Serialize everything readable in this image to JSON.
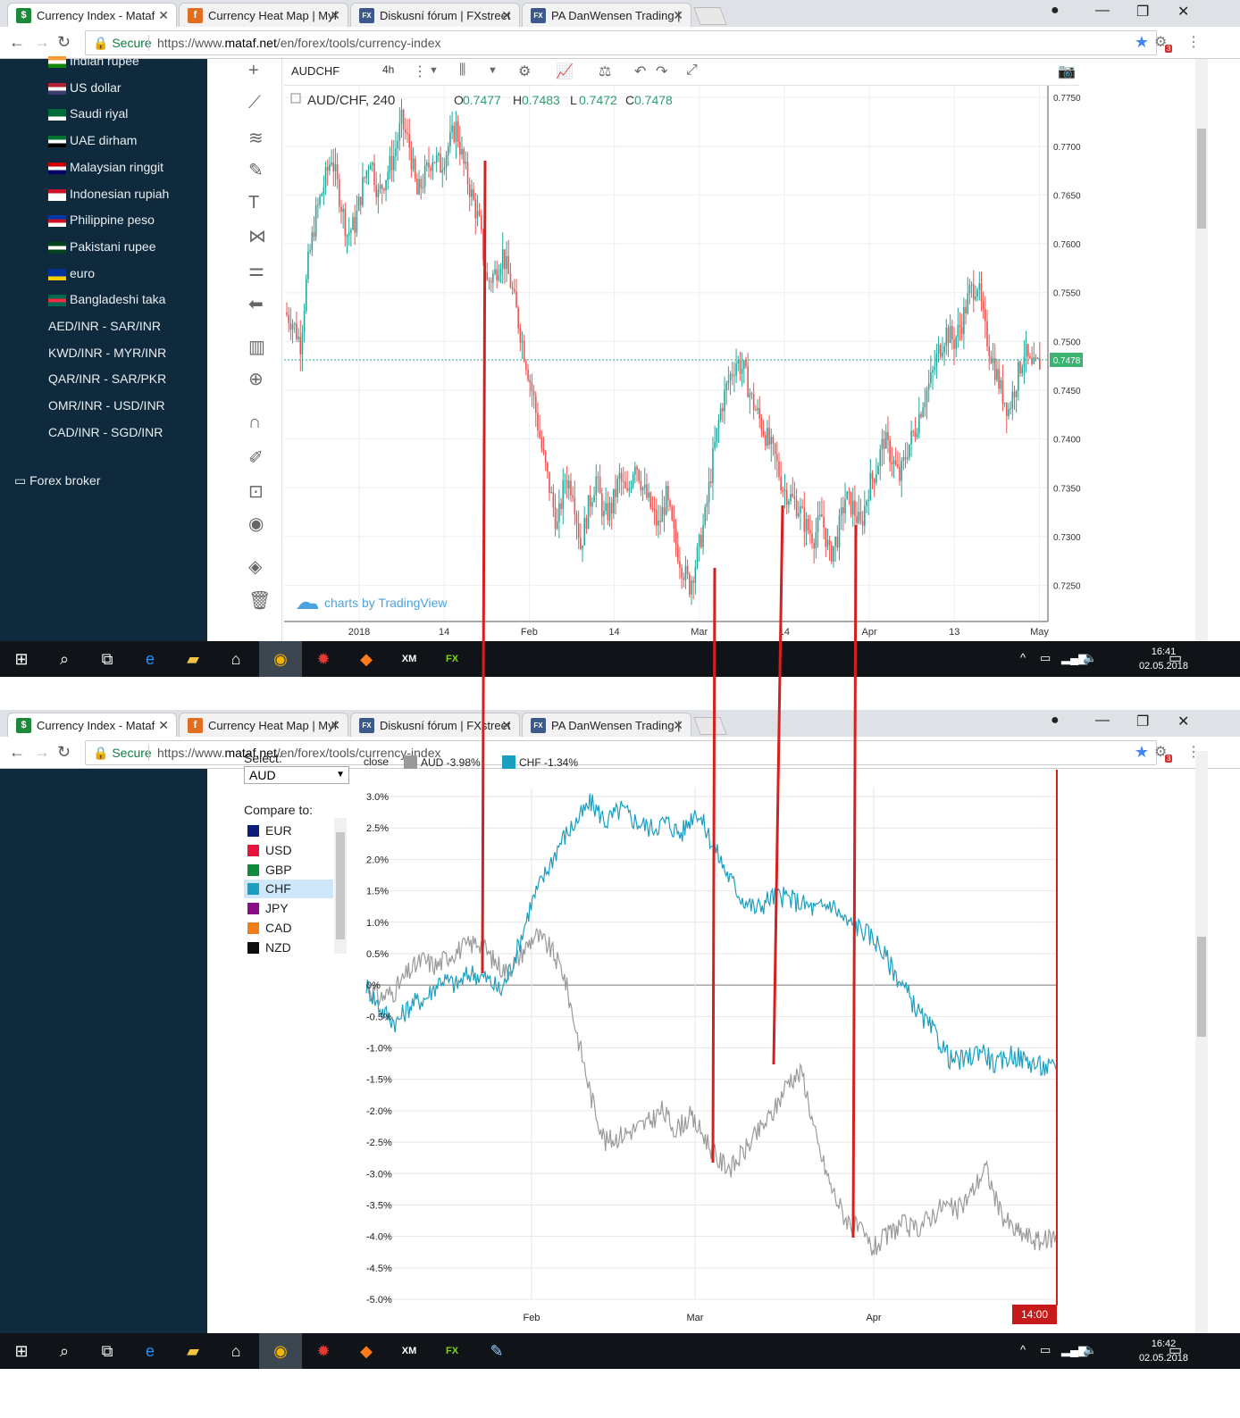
{
  "browser": {
    "tabs": [
      {
        "title": "Currency Index - Mataf",
        "icon": "$",
        "color": "#1a8a3a"
      },
      {
        "title": "Currency Heat Map | Myf",
        "icon": "f",
        "color": "#e07020"
      },
      {
        "title": "Diskusní fórum | FXstreet",
        "icon": "FX",
        "color": "#3b5a8a"
      },
      {
        "title": "PA DanWensen Trading |",
        "icon": "FX",
        "color": "#3b5a8a"
      }
    ],
    "secure_label": "Secure",
    "url_prefix": "https://www.",
    "url_domain": "mataf.net",
    "url_path": "/en/forex/tools/currency-index",
    "ext_badge": "3"
  },
  "sidebar": {
    "items": [
      {
        "label": "Indian rupee",
        "flag": "in"
      },
      {
        "label": "US dollar",
        "flag": "us"
      },
      {
        "label": "Saudi riyal",
        "flag": "sa"
      },
      {
        "label": "UAE dirham",
        "flag": "ae"
      },
      {
        "label": "Malaysian ringgit",
        "flag": "my"
      },
      {
        "label": "Indonesian rupiah",
        "flag": "id"
      },
      {
        "label": "Philippine peso",
        "flag": "ph"
      },
      {
        "label": "Pakistani rupee",
        "flag": "pk"
      },
      {
        "label": "euro",
        "flag": "eu"
      },
      {
        "label": "Bangladeshi taka",
        "flag": "bd"
      },
      {
        "label": "AED/INR - SAR/INR",
        "flag": ""
      },
      {
        "label": "KWD/INR - MYR/INR",
        "flag": ""
      },
      {
        "label": "QAR/INR - SAR/PKR",
        "flag": ""
      },
      {
        "label": "OMR/INR - USD/INR",
        "flag": ""
      },
      {
        "label": "CAD/INR - SGD/INR",
        "flag": ""
      }
    ],
    "forex_broker": "Forex broker"
  },
  "tradingview": {
    "symbol": "AUDCHF",
    "interval": "4h",
    "legend_pair": "AUD/CHF, 240",
    "o_label": "O",
    "o_value": "0.7477",
    "h_label": "H",
    "h_value": "0.7483",
    "l_label": "L",
    "l_value": "0.7472",
    "c_label": "C",
    "c_value": "0.7478",
    "last_price": "0.7478",
    "watermark": "charts by TradingView"
  },
  "currency_index": {
    "select_label": "Select:",
    "selected_currency": "AUD",
    "compare_label": "Compare to:",
    "compare_items": [
      {
        "label": "EUR",
        "color": "#0b1f7a"
      },
      {
        "label": "USD",
        "color": "#e8123c"
      },
      {
        "label": "GBP",
        "color": "#0f8c3b"
      },
      {
        "label": "CHF",
        "color": "#1a9fc0"
      },
      {
        "label": "JPY",
        "color": "#8b0c8b"
      },
      {
        "label": "CAD",
        "color": "#f07c1a"
      },
      {
        "label": "NZD",
        "color": "#0d0d0d"
      }
    ],
    "legend_close": "close",
    "legend_aud": "AUD  -3.98%",
    "legend_chf": "CHF  -1.34%",
    "time_badge": "14:00"
  },
  "taskbar": {
    "time1": "16:41",
    "date1": "02.05.2018",
    "time2": "16:42",
    "date2": "02.05.2018"
  },
  "chart_data": [
    {
      "type": "candlestick",
      "title": "AUD/CHF, 240",
      "y_ticks": [
        "0.7750",
        "0.7700",
        "0.7650",
        "0.7600",
        "0.7550",
        "0.7500",
        "0.7450",
        "0.7400",
        "0.7350",
        "0.7300",
        "0.7250"
      ],
      "x_ticks": [
        "2018",
        "14",
        "Feb",
        "14",
        "Mar",
        "14",
        "Apr",
        "13",
        "May"
      ],
      "ylim": [
        0.7213,
        0.7762
      ],
      "series": [
        {
          "values": [
            0.753,
            0.752,
            0.7498,
            0.758,
            0.763,
            0.766,
            0.769,
            0.765,
            0.761,
            0.762,
            0.766,
            0.769,
            0.765,
            0.767,
            0.769,
            0.7725,
            0.77,
            0.765,
            0.767,
            0.769,
            0.768,
            0.77,
            0.772,
            0.768,
            0.765,
            0.762,
            0.756,
            0.757,
            0.759,
            0.756,
            0.752,
            0.748,
            0.744,
            0.739,
            0.735,
            0.731,
            0.736,
            0.735,
            0.729,
            0.733,
            0.736,
            0.732,
            0.733,
            0.736,
            0.734,
            0.738,
            0.735,
            0.733,
            0.731,
            0.734,
            0.73,
            0.727,
            0.725,
            0.728,
            0.732,
            0.738,
            0.743,
            0.746,
            0.748,
            0.747,
            0.744,
            0.742,
            0.74,
            0.738,
            0.735,
            0.734,
            0.733,
            0.731,
            0.73,
            0.732,
            0.728,
            0.73,
            0.734,
            0.733,
            0.731,
            0.735,
            0.737,
            0.74,
            0.738,
            0.736,
            0.739,
            0.741,
            0.744,
            0.746,
            0.749,
            0.751,
            0.75,
            0.752,
            0.755,
            0.756,
            0.751,
            0.748,
            0.745,
            0.743,
            0.746,
            0.749,
            0.747,
            0.7478
          ]
        }
      ]
    },
    {
      "type": "line",
      "title": "",
      "y_ticks": [
        "3.0%",
        "2.5%",
        "2.0%",
        "1.5%",
        "1.0%",
        "0.5%",
        "0%",
        "-0.5%",
        "-1.0%",
        "-1.5%",
        "-2.0%",
        "-2.5%",
        "-3.0%",
        "-3.5%",
        "-4.0%",
        "-4.5%",
        "-5.0%"
      ],
      "x_ticks": [
        "Feb",
        "Mar",
        "Apr"
      ],
      "ylim": [
        -5.0,
        3.0
      ],
      "series": [
        {
          "name": "AUD",
          "color": "#9a9a9a",
          "values": [
            0.0,
            -0.2,
            -0.1,
            0.2,
            0.4,
            0.3,
            0.5,
            0.6,
            0.7,
            0.4,
            0.2,
            0.5,
            0.8,
            0.6,
            0.2,
            -0.8,
            -1.8,
            -2.5,
            -2.4,
            -2.3,
            -2.2,
            -2.0,
            -2.3,
            -2.1,
            -2.4,
            -2.8,
            -2.9,
            -2.6,
            -2.3,
            -2.0,
            -1.5,
            -1.4,
            -2.5,
            -3.2,
            -3.7,
            -3.9,
            -4.2,
            -4.0,
            -3.8,
            -3.9,
            -3.7,
            -3.5,
            -3.6,
            -3.3,
            -2.9,
            -3.6,
            -3.9,
            -4.0,
            -4.1,
            -3.98
          ]
        },
        {
          "name": "CHF",
          "color": "#1a9fc0",
          "values": [
            0.0,
            -0.4,
            -0.6,
            -0.3,
            -0.2,
            0.1,
            0.0,
            0.2,
            0.1,
            -0.1,
            0.5,
            1.3,
            1.8,
            2.3,
            2.6,
            2.9,
            2.6,
            2.8,
            2.6,
            2.5,
            2.6,
            2.4,
            2.8,
            2.3,
            1.8,
            1.4,
            1.2,
            1.4,
            1.4,
            1.3,
            1.2,
            1.3,
            1.0,
            0.9,
            0.7,
            0.3,
            -0.1,
            -0.5,
            -0.8,
            -1.2,
            -1.2,
            -1.0,
            -1.3,
            -1.1,
            -1.2,
            -1.3,
            -1.34
          ]
        }
      ]
    }
  ]
}
